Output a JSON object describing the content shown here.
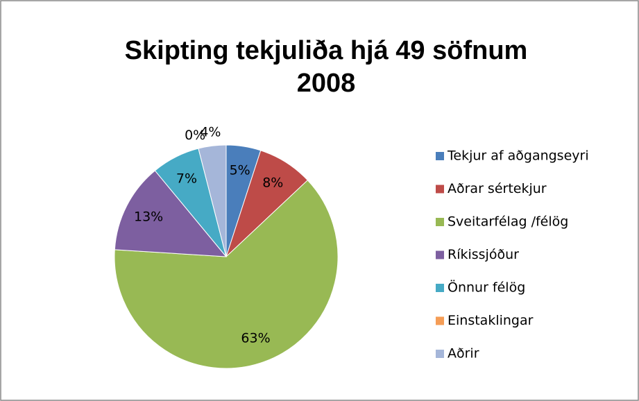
{
  "chart_data": {
    "type": "pie",
    "title": [
      "Skipting tekjuliða hjá 49 söfnum",
      "2008"
    ],
    "categories": [
      "Tekjur af aðgangseyri",
      "Aðrar sértekjur",
      "Sveitarfélag /félög",
      "Ríkissjóður",
      "Önnur félög",
      "Einstaklingar",
      "Aðrir"
    ],
    "values": [
      5,
      8,
      63,
      13,
      7,
      0,
      4
    ],
    "value_labels": [
      "5%",
      "8%",
      "63%",
      "13%",
      "7%",
      "0%",
      "4%"
    ],
    "colors": [
      "#4a7ebb",
      "#be4b48",
      "#98b954",
      "#7d5fa0",
      "#46aac5",
      "#f59d56",
      "#a5b6d9"
    ],
    "legend": "right"
  }
}
